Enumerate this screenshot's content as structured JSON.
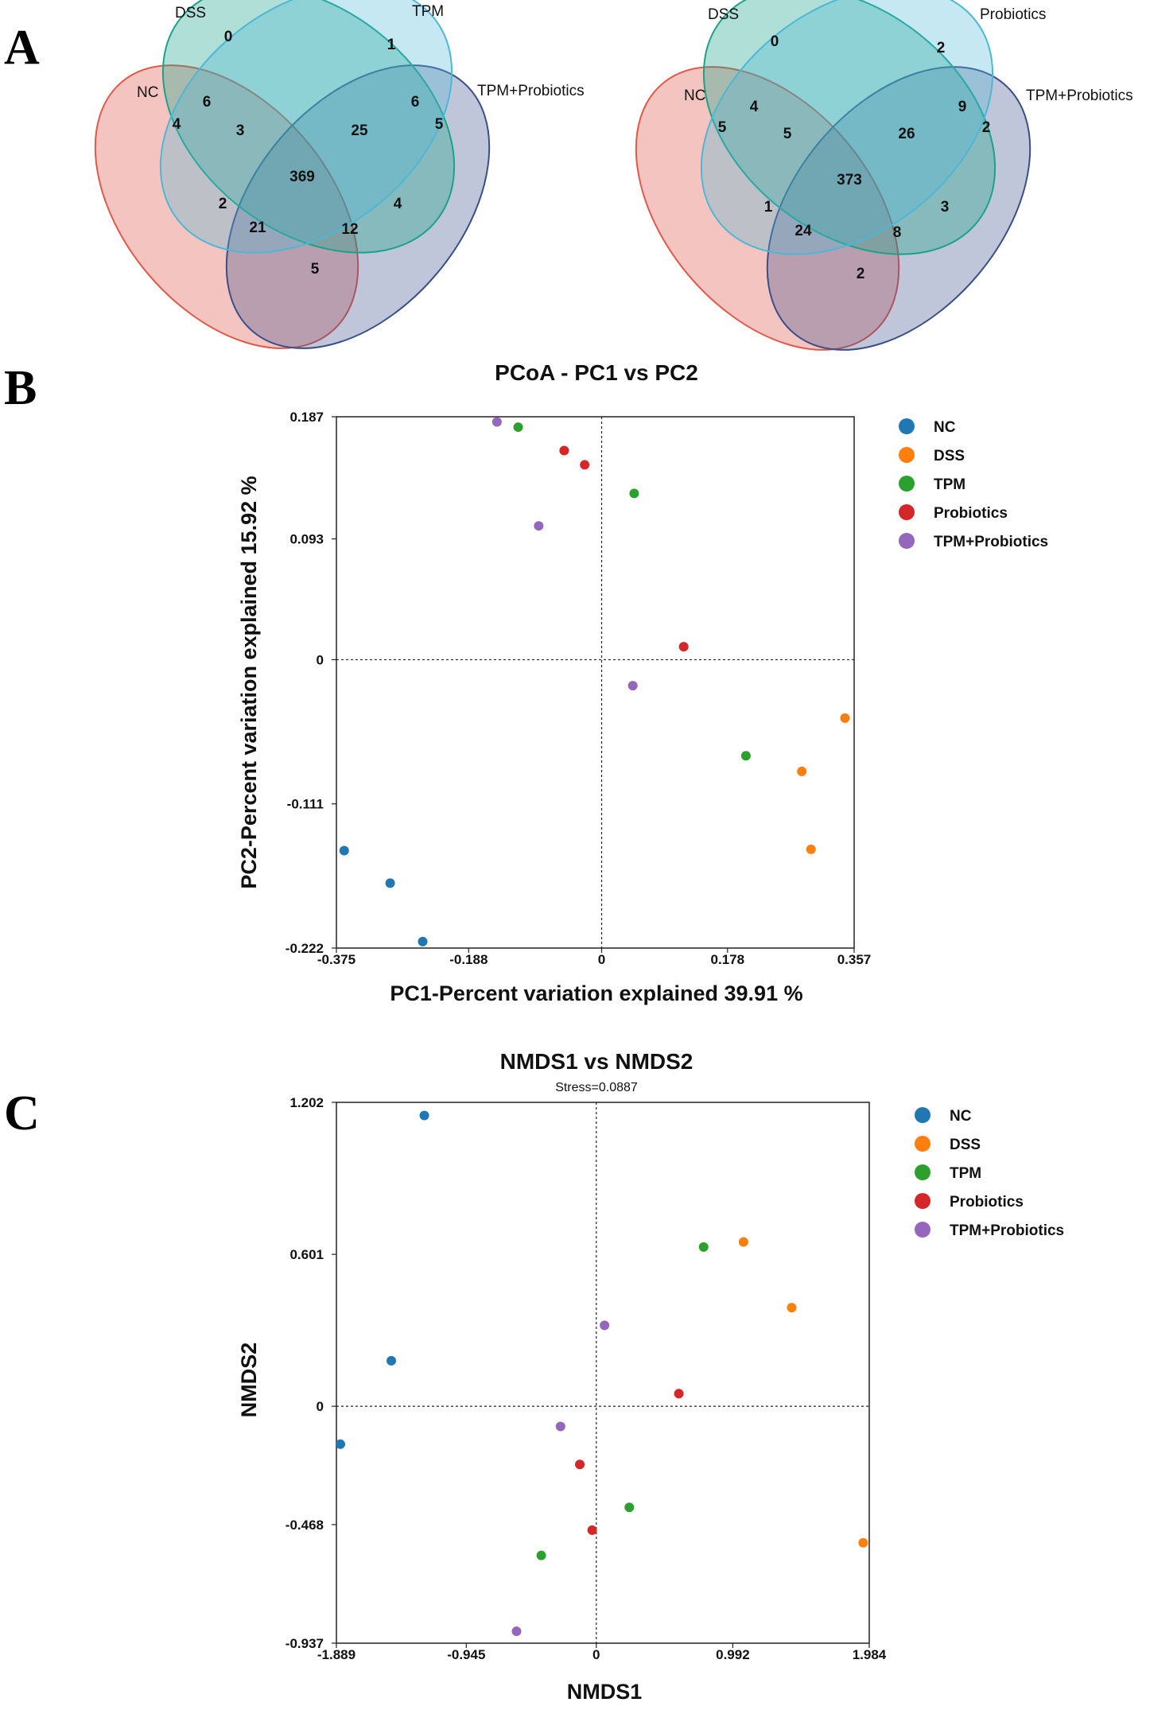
{
  "panels": {
    "a": "A",
    "b": "B",
    "c": "C"
  },
  "colors": {
    "NC": "#1f77b4",
    "DSS": "#ff7f0e",
    "TPM": "#2ca02c",
    "Probiotics": "#d62728",
    "TPM+Probiotics": "#9467bd",
    "venn_nc": "#e05a4a",
    "venn_dss": "#4db8d6",
    "venn_third": "#1aa38a",
    "venn_fourth": "#3a4f8a"
  },
  "venn1": {
    "labels": {
      "nc": "NC",
      "dss": "DSS",
      "third": "TPM",
      "fourth": "TPM+Probiotics"
    },
    "counts": [
      "0",
      "1",
      "6",
      "4",
      "5",
      "3",
      "25",
      "369",
      "2",
      "4",
      "21",
      "12",
      "5",
      "6"
    ]
  },
  "venn2": {
    "labels": {
      "nc": "NC",
      "dss": "DSS",
      "third": "Probiotics",
      "fourth": "TPM+Probiotics"
    },
    "counts": [
      "0",
      "2",
      "4",
      "5",
      "2",
      "5",
      "26",
      "373",
      "1",
      "3",
      "24",
      "8",
      "2",
      "9"
    ]
  },
  "chart_data": [
    {
      "type": "scatter",
      "title": "PCoA - PC1 vs PC2",
      "subtitle": "",
      "xlabel": "PC1-Percent variation explained 39.91 %",
      "ylabel": "PC2-Percent variation explained 15.92 %",
      "xlim": [
        -0.375,
        0.357
      ],
      "ylim": [
        -0.222,
        0.187
      ],
      "xticks": [
        -0.375,
        -0.188,
        0,
        0.178,
        0.357
      ],
      "xtick_labels": [
        "-0.375",
        "-0.188",
        "0",
        "0.178",
        "0.357"
      ],
      "yticks": [
        0.187,
        0.093,
        0,
        -0.111,
        -0.222
      ],
      "ytick_labels": [
        "0.187",
        "0.093",
        "0",
        "-0.111",
        "-0.222"
      ],
      "legend": [
        "NC",
        "DSS",
        "TPM",
        "Probiotics",
        "TPM+Probiotics"
      ],
      "series": [
        {
          "name": "NC",
          "points": [
            [
              -0.364,
              -0.147
            ],
            [
              -0.299,
              -0.172
            ],
            [
              -0.253,
              -0.217
            ]
          ]
        },
        {
          "name": "DSS",
          "points": [
            [
              0.344,
              -0.045
            ],
            [
              0.283,
              -0.086
            ],
            [
              0.296,
              -0.146
            ]
          ]
        },
        {
          "name": "TPM",
          "points": [
            [
              -0.118,
              0.179
            ],
            [
              0.046,
              0.128
            ],
            [
              0.204,
              -0.074
            ]
          ]
        },
        {
          "name": "Probiotics",
          "points": [
            [
              -0.053,
              0.161
            ],
            [
              -0.024,
              0.15
            ],
            [
              0.116,
              0.01
            ]
          ]
        },
        {
          "name": "TPM+Probiotics",
          "points": [
            [
              -0.148,
              0.183
            ],
            [
              -0.089,
              0.103
            ],
            [
              0.044,
              -0.02
            ]
          ]
        }
      ]
    },
    {
      "type": "scatter",
      "title": "NMDS1 vs NMDS2",
      "subtitle": "Stress=0.0887",
      "xlabel": "NMDS1",
      "ylabel": "NMDS2",
      "xlim": [
        -1.889,
        1.984
      ],
      "ylim": [
        -0.937,
        1.202
      ],
      "xticks": [
        -1.889,
        -0.945,
        0,
        0.992,
        1.984
      ],
      "xtick_labels": [
        "-1.889",
        "-0.945",
        "0",
        "0.992",
        "1.984"
      ],
      "yticks": [
        1.202,
        0.601,
        0,
        -0.468,
        -0.937
      ],
      "ytick_labels": [
        "1.202",
        "0.601",
        "0",
        "-0.468",
        "-0.937"
      ],
      "legend": [
        "NC",
        "DSS",
        "TPM",
        "Probiotics",
        "TPM+Probiotics"
      ],
      "series": [
        {
          "name": "NC",
          "points": [
            [
              -1.25,
              1.15
            ],
            [
              -1.49,
              0.18
            ],
            [
              -1.86,
              -0.15
            ]
          ]
        },
        {
          "name": "DSS",
          "points": [
            [
              1.07,
              0.65
            ],
            [
              1.42,
              0.39
            ],
            [
              1.94,
              -0.54
            ]
          ]
        },
        {
          "name": "TPM",
          "points": [
            [
              0.78,
              0.63
            ],
            [
              0.24,
              -0.4
            ],
            [
              -0.4,
              -0.59
            ]
          ]
        },
        {
          "name": "Probiotics",
          "points": [
            [
              0.6,
              0.05
            ],
            [
              -0.12,
              -0.23
            ],
            [
              -0.03,
              -0.49
            ]
          ]
        },
        {
          "name": "TPM+Probiotics",
          "points": [
            [
              0.06,
              0.32
            ],
            [
              -0.26,
              -0.08
            ],
            [
              -0.58,
              -0.89
            ]
          ]
        }
      ]
    }
  ]
}
